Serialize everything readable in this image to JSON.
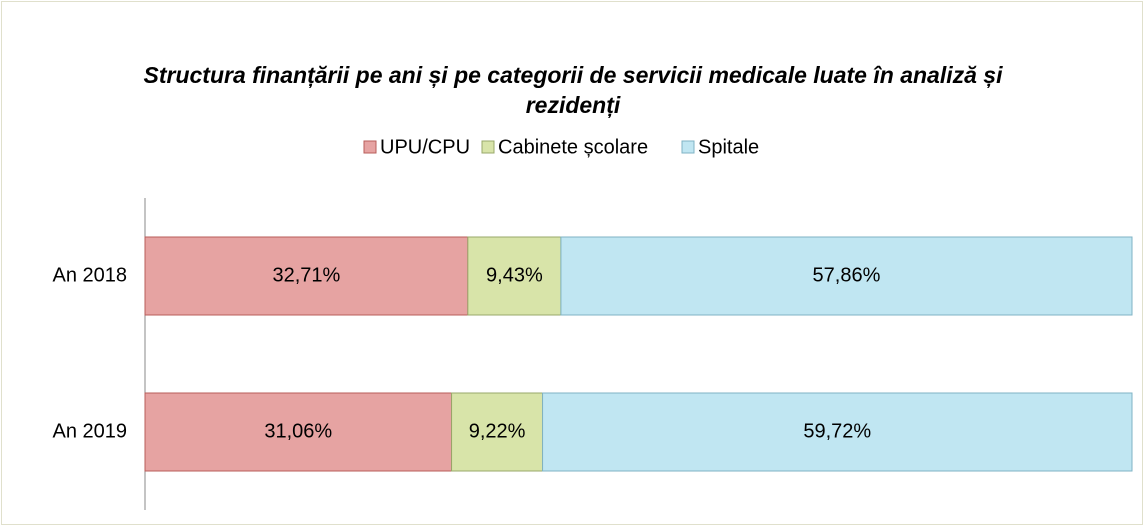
{
  "chart_data": {
    "type": "stacked-bar-horizontal",
    "title": "Structura finanțării  pe ani și pe categorii de servicii medicale luate în analiză și rezidenți",
    "categories": [
      "An 2018",
      "An 2019"
    ],
    "series": [
      {
        "name": "UPU/CPU",
        "color": "#e6a3a2",
        "values": [
          32.71,
          31.06
        ],
        "value_labels": [
          "32,71%",
          "31,06%"
        ]
      },
      {
        "name": "Cabinete școlare",
        "color": "#d8e4a9",
        "values": [
          9.43,
          9.22
        ],
        "value_labels": [
          "9,43%",
          "9,22%"
        ]
      },
      {
        "name": "Spitale",
        "color": "#c0e6f2",
        "values": [
          57.86,
          59.72
        ],
        "value_labels": [
          "57,86%",
          "59,72%"
        ]
      }
    ]
  }
}
